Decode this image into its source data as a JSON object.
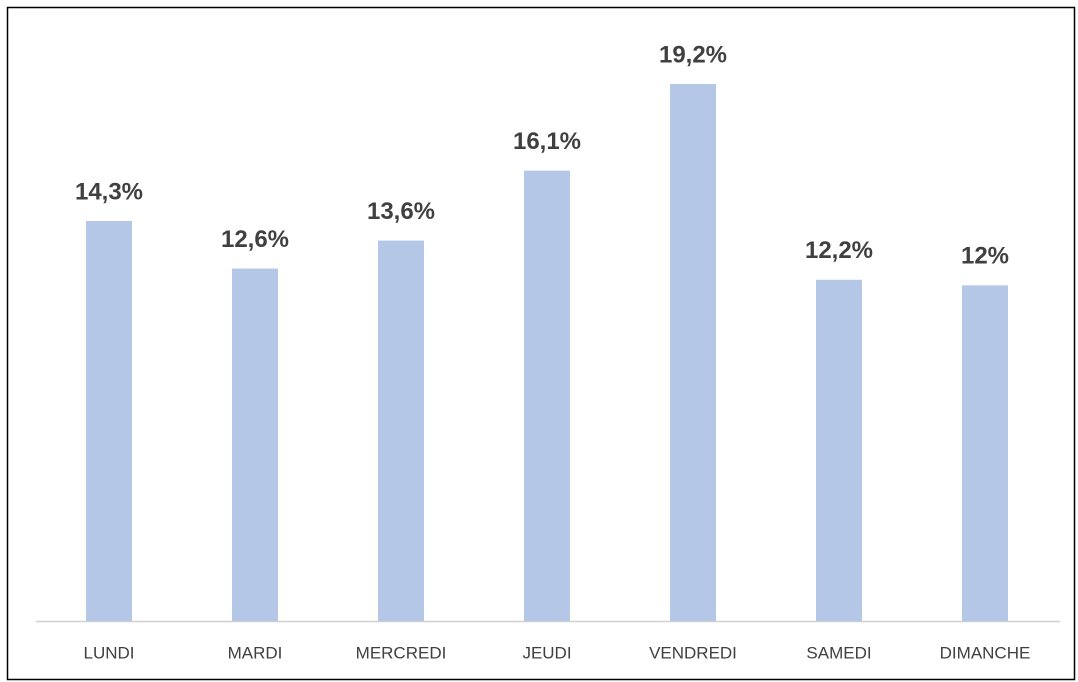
{
  "chart_data": {
    "type": "bar",
    "categories": [
      "LUNDI",
      "MARDI",
      "MERCREDI",
      "JEUDI",
      "VENDREDI",
      "SAMEDI",
      "DIMANCHE"
    ],
    "values": [
      14.3,
      12.6,
      13.6,
      16.1,
      19.2,
      12.2,
      12
    ],
    "value_labels": [
      "14,3%",
      "12,6%",
      "13,6%",
      "16,1%",
      "19,2%",
      "12,2%",
      "12%"
    ],
    "color": "#b4c7e7"
  }
}
